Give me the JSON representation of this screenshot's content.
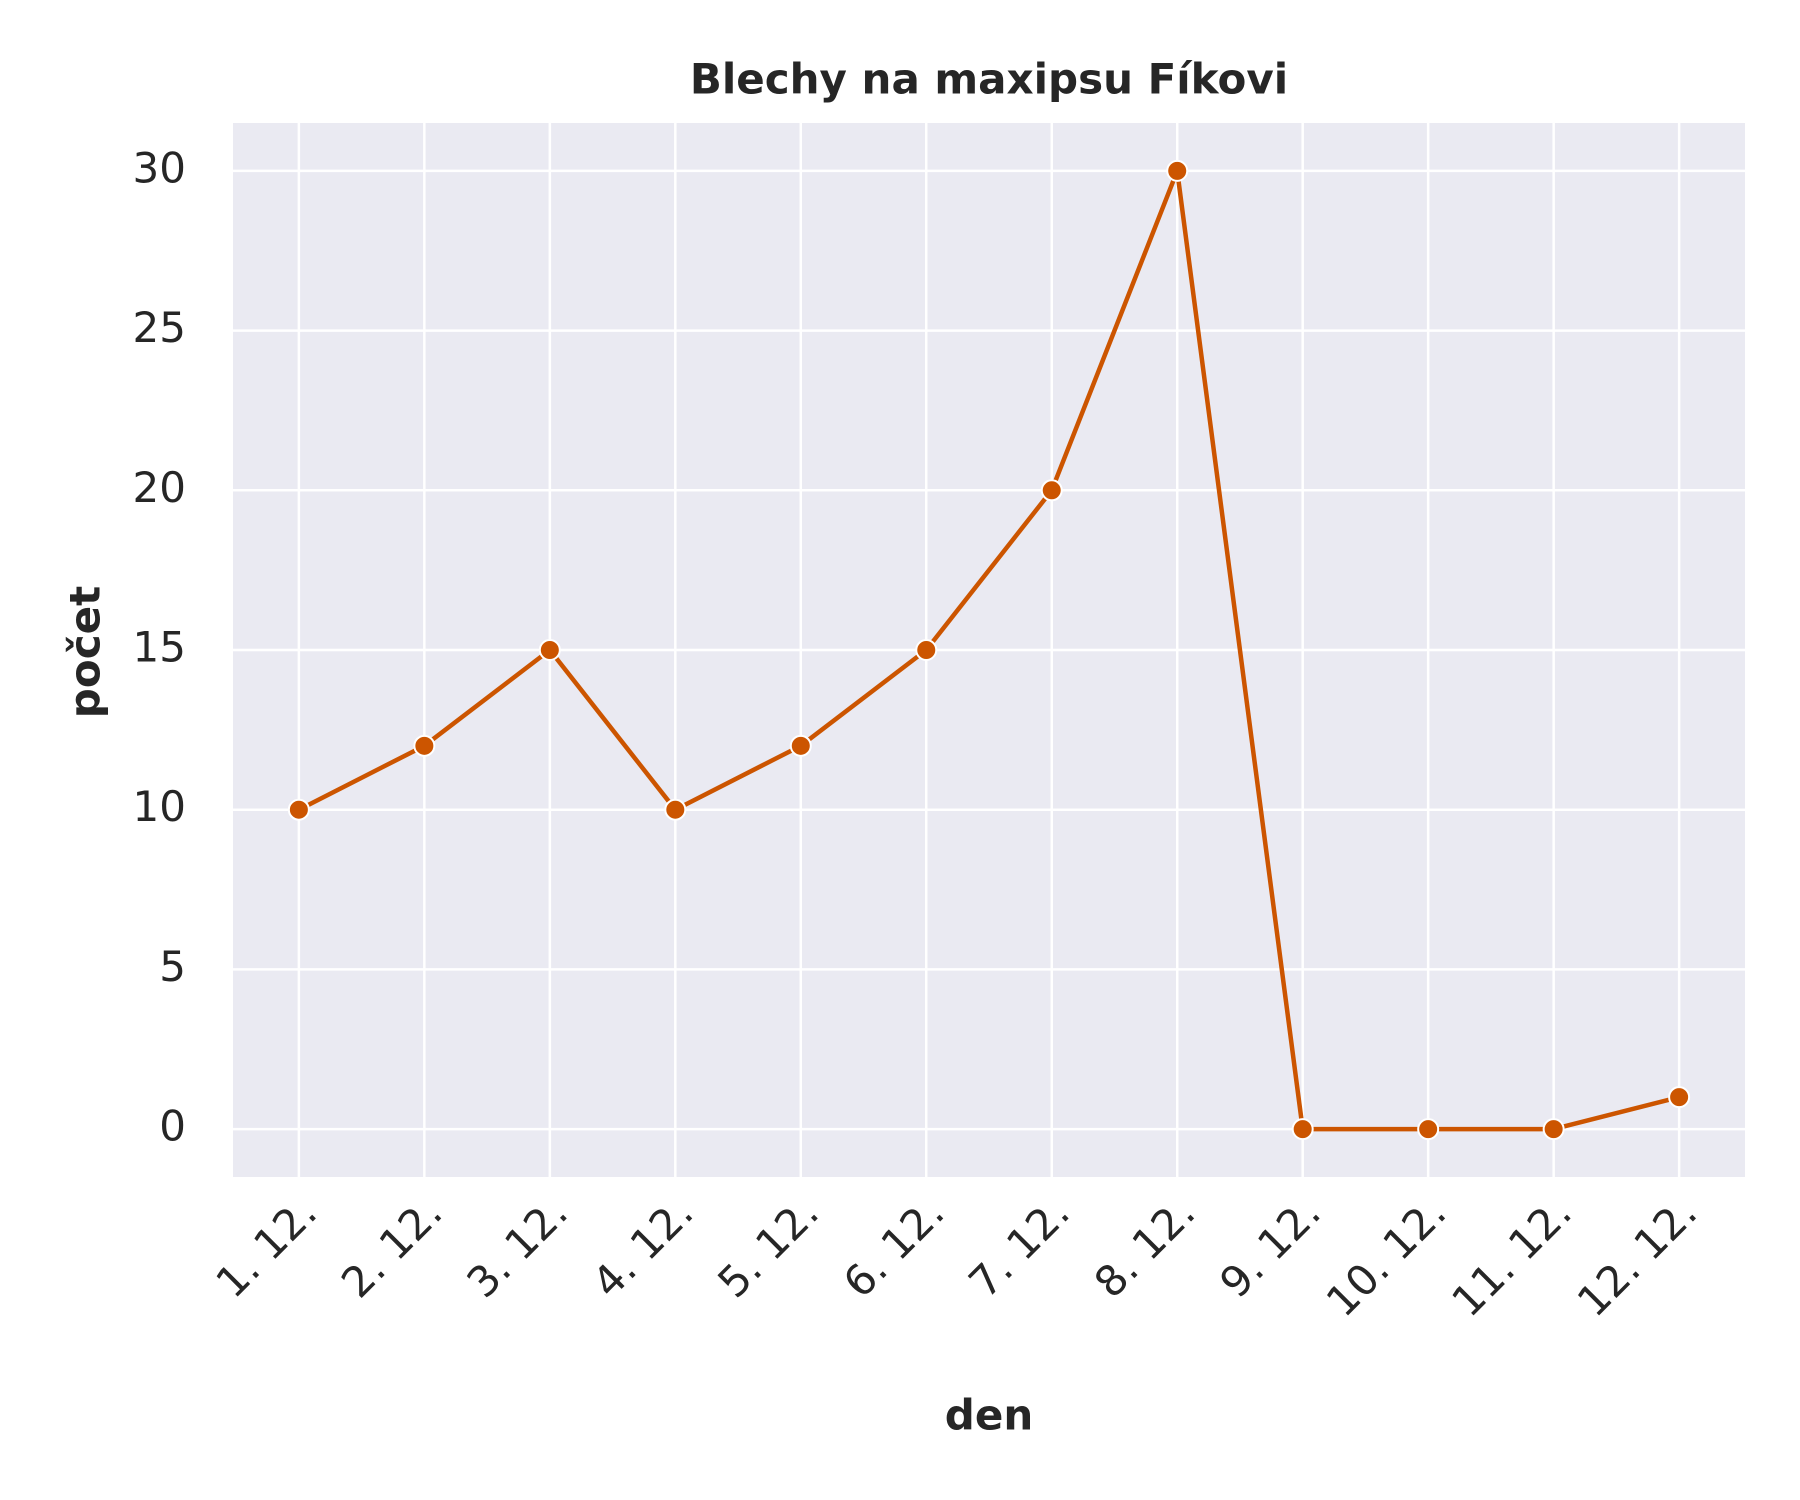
{
  "chart_data": {
    "type": "line",
    "title": "Blechy na maxipsu Fíkovi",
    "x_label": "den",
    "y_label": "počet",
    "categories": [
      "1. 12.",
      "2. 12.",
      "3. 12.",
      "4. 12.",
      "5. 12.",
      "6. 12.",
      "7. 12.",
      "8. 12.",
      "9. 12.",
      "10. 12.",
      "11. 12.",
      "12. 12."
    ],
    "series": [
      {
        "name": "počet",
        "color": "#cc5500",
        "values": [
          10,
          12,
          15,
          10,
          12,
          15,
          20,
          30,
          0,
          0,
          0,
          1
        ]
      }
    ],
    "ylim": [
      -1.5,
      31.5
    ],
    "yticks": [
      0,
      5,
      10,
      15,
      20,
      25,
      30
    ],
    "grid": true,
    "markers": true
  }
}
